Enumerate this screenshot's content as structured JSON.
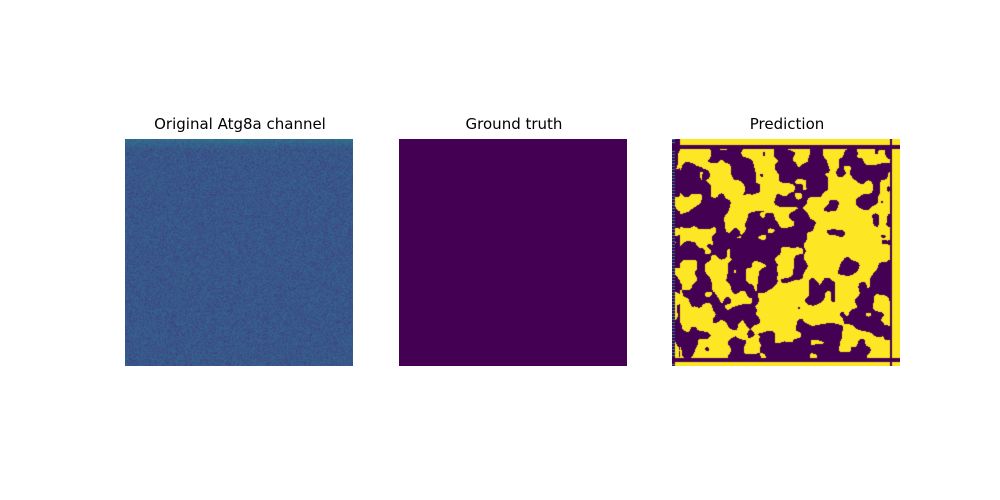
{
  "figure": {
    "panels": [
      {
        "title": "Original Atg8a channel",
        "colormap": "viridis"
      },
      {
        "title": "Ground truth",
        "colormap": "viridis"
      },
      {
        "title": "Prediction",
        "colormap": "viridis"
      }
    ]
  },
  "colors": {
    "background": "#ffffff",
    "viridis_low": "#440154",
    "viridis_mid": "#3b528b",
    "viridis_teal": "#21918c",
    "viridis_high": "#fde725"
  }
}
